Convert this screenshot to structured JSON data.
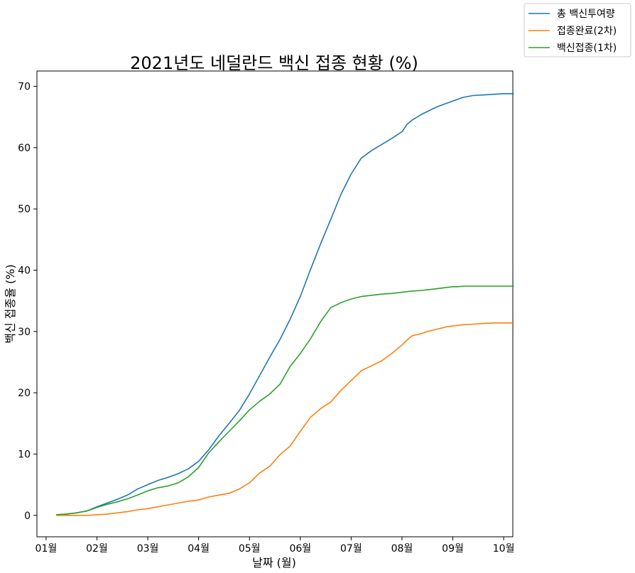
{
  "chart_data": {
    "type": "line",
    "title": "2021년도 네덜란드 백신 접종 현황 (%)",
    "xlabel": "날짜 (월)",
    "ylabel": "백신 접종율 (%)",
    "ylim": [
      -3.5,
      72.5
    ],
    "yticks": [
      0,
      10,
      20,
      30,
      40,
      50,
      60,
      70
    ],
    "xlim": [
      -0.18,
      9.18
    ],
    "xticks": [
      0,
      1,
      2,
      3,
      4,
      5,
      6,
      7,
      8,
      9
    ],
    "xtick_labels": [
      "01월",
      "02월",
      "03월",
      "04월",
      "05월",
      "06월",
      "07월",
      "08월",
      "09월",
      "10월"
    ],
    "grid": false,
    "legend_placement": "top-right, outside the axes",
    "series": [
      {
        "name": "총 백신투여량",
        "color": "#1f77b4",
        "x": [
          0.2,
          0.4,
          0.6,
          0.8,
          1.0,
          1.2,
          1.4,
          1.6,
          1.8,
          2.0,
          2.2,
          2.4,
          2.6,
          2.8,
          3.0,
          3.2,
          3.4,
          3.6,
          3.8,
          4.0,
          4.2,
          4.4,
          4.6,
          4.8,
          5.0,
          5.2,
          5.4,
          5.6,
          5.8,
          6.0,
          6.2,
          6.4,
          6.6,
          6.8,
          7.0,
          7.1,
          7.2,
          7.4,
          7.5,
          7.6,
          7.7,
          7.8,
          7.9,
          8.0,
          8.1,
          8.2,
          8.4,
          8.6,
          8.8,
          9.0,
          9.2
        ],
        "y": [
          0.1,
          0.2,
          0.4,
          0.7,
          1.4,
          2.0,
          2.6,
          3.3,
          4.3,
          5.0,
          5.7,
          6.2,
          6.8,
          7.6,
          8.8,
          10.7,
          13.0,
          15.0,
          17.1,
          19.8,
          22.8,
          25.8,
          28.7,
          32.0,
          35.7,
          40.1,
          44.3,
          48.3,
          52.4,
          55.7,
          58.3,
          59.5,
          60.5,
          61.5,
          62.6,
          63.8,
          64.5,
          65.5,
          65.9,
          66.3,
          66.7,
          67.0,
          67.3,
          67.6,
          67.9,
          68.2,
          68.5,
          68.6,
          68.7,
          68.8,
          68.8
        ]
      },
      {
        "name": "접종완료(2차)",
        "color": "#ff7f0e",
        "x": [
          0.2,
          0.4,
          0.6,
          0.8,
          1.0,
          1.2,
          1.4,
          1.6,
          1.8,
          2.0,
          2.2,
          2.4,
          2.6,
          2.8,
          3.0,
          3.2,
          3.4,
          3.6,
          3.8,
          4.0,
          4.2,
          4.4,
          4.6,
          4.8,
          5.0,
          5.2,
          5.4,
          5.6,
          5.8,
          6.0,
          6.2,
          6.4,
          6.6,
          6.8,
          7.0,
          7.1,
          7.2,
          7.4,
          7.5,
          7.6,
          7.7,
          7.8,
          7.9,
          8.0,
          8.1,
          8.2,
          8.4,
          8.6,
          8.8,
          9.0,
          9.2
        ],
        "y": [
          0.0,
          0.0,
          0.0,
          0.0,
          0.1,
          0.2,
          0.4,
          0.6,
          0.9,
          1.1,
          1.4,
          1.7,
          2.0,
          2.3,
          2.5,
          3.0,
          3.3,
          3.6,
          4.3,
          5.3,
          6.9,
          8.0,
          9.9,
          11.3,
          13.7,
          16.0,
          17.4,
          18.5,
          20.4,
          22.0,
          23.6,
          24.4,
          25.2,
          26.4,
          27.8,
          28.6,
          29.3,
          29.7,
          30.0,
          30.2,
          30.4,
          30.6,
          30.8,
          30.9,
          31.0,
          31.1,
          31.2,
          31.3,
          31.4,
          31.4,
          31.4
        ]
      },
      {
        "name": "백신접종(1차)",
        "color": "#2ca02c",
        "x": [
          0.2,
          0.4,
          0.6,
          0.8,
          1.0,
          1.2,
          1.4,
          1.6,
          1.8,
          2.0,
          2.2,
          2.4,
          2.6,
          2.8,
          3.0,
          3.2,
          3.4,
          3.6,
          3.8,
          4.0,
          4.2,
          4.4,
          4.6,
          4.8,
          5.0,
          5.2,
          5.4,
          5.6,
          5.8,
          6.0,
          6.2,
          6.4,
          6.6,
          6.8,
          7.0,
          7.1,
          7.2,
          7.4,
          7.5,
          7.6,
          7.7,
          7.8,
          7.9,
          8.0,
          8.1,
          8.2,
          8.4,
          8.6,
          8.8,
          9.0,
          9.2
        ],
        "y": [
          0.1,
          0.2,
          0.4,
          0.7,
          1.3,
          1.8,
          2.2,
          2.7,
          3.3,
          4.0,
          4.5,
          4.8,
          5.3,
          6.3,
          7.8,
          10.2,
          12.0,
          13.7,
          15.4,
          17.2,
          18.6,
          19.8,
          21.4,
          24.3,
          26.4,
          28.8,
          31.6,
          33.9,
          34.7,
          35.3,
          35.7,
          35.9,
          36.1,
          36.2,
          36.4,
          36.5,
          36.6,
          36.7,
          36.8,
          36.9,
          37.0,
          37.1,
          37.2,
          37.3,
          37.3,
          37.4,
          37.4,
          37.4,
          37.4,
          37.4,
          37.4
        ]
      }
    ]
  }
}
